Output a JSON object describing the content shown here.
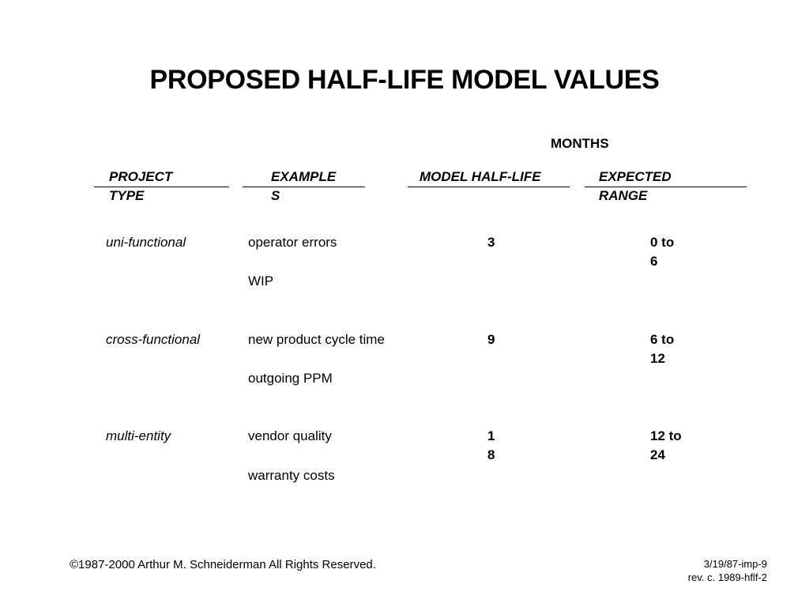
{
  "slide": {
    "title": "PROPOSED HALF-LIFE MODEL VALUES",
    "super_header": "MONTHS",
    "headers": {
      "project_type": [
        "PROJECT",
        "TYPE"
      ],
      "examples": [
        "EXAMPLE",
        "S"
      ],
      "model_half_life": "MODEL HALF-LIFE",
      "expected_range": [
        "EXPECTED",
        "RANGE"
      ]
    },
    "rows": [
      {
        "type": "uni-functional",
        "examples": [
          "operator errors",
          "WIP"
        ],
        "half_life": [
          "3"
        ],
        "range": [
          "0 to",
          "6"
        ]
      },
      {
        "type": "cross-functional",
        "examples": [
          "new product cycle time",
          "outgoing PPM"
        ],
        "half_life": [
          "9"
        ],
        "range": [
          "6 to",
          "12"
        ]
      },
      {
        "type": "multi-entity",
        "examples": [
          "vendor quality",
          "warranty costs"
        ],
        "half_life": [
          "1",
          "8"
        ],
        "range": [
          "12 to",
          "24"
        ]
      }
    ],
    "footer": {
      "copyright": "©1987-2000 Arthur M. Schneiderman  All Rights Reserved.",
      "ref_line1": "3/19/87-imp-9",
      "ref_line2": "rev. c. 1989-hflf-2"
    }
  }
}
